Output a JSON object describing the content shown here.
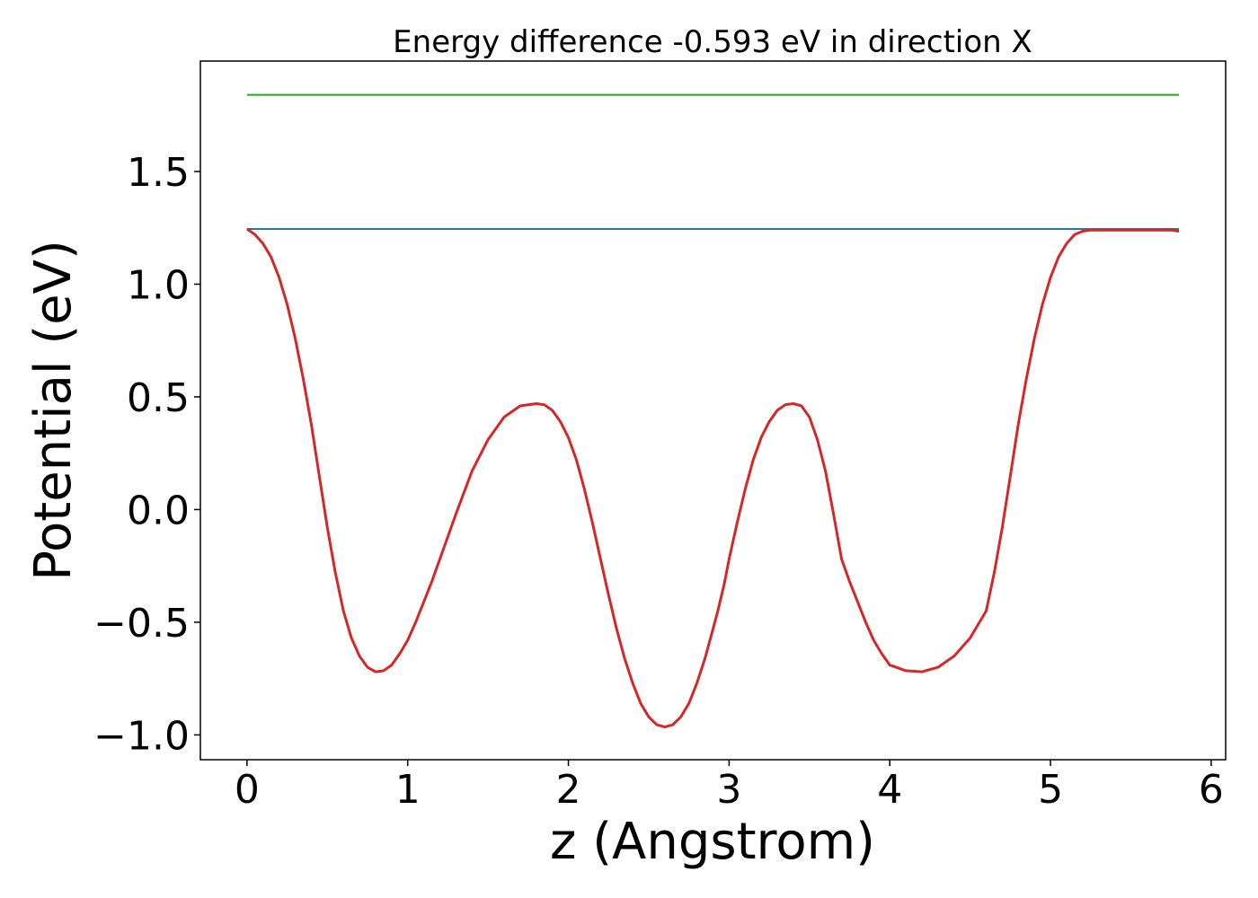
{
  "chart_data": {
    "type": "line",
    "title": "Energy difference -0.593 eV in direction X",
    "xlabel": "z (Angstrom)",
    "ylabel": "Potential (eV)",
    "xlim": [
      -0.29,
      6.09
    ],
    "ylim": [
      -1.11,
      1.99
    ],
    "xticks": [
      0,
      1,
      2,
      3,
      4,
      5,
      6
    ],
    "xtick_labels": [
      "0",
      "1",
      "2",
      "3",
      "4",
      "5",
      "6"
    ],
    "yticks": [
      -1.0,
      -0.5,
      0.0,
      0.5,
      1.0,
      1.5
    ],
    "ytick_labels": [
      "−1.0",
      "−0.5",
      "0.0",
      "0.5",
      "1.0",
      "1.5"
    ],
    "grid": false,
    "series": [
      {
        "color": "#2ca02c",
        "x": [
          0,
          5.8
        ],
        "y": [
          1.84,
          1.84
        ]
      },
      {
        "color": "#1f77b4",
        "x": [
          0,
          5.8
        ],
        "y": [
          1.245,
          1.245
        ]
      },
      {
        "color": "#d62728",
        "x": [
          0,
          0.05,
          0.1,
          0.15,
          0.2,
          0.25,
          0.3,
          0.35,
          0.4,
          0.45,
          0.5,
          0.55,
          0.6,
          0.65,
          0.7,
          0.75,
          0.8,
          0.85,
          0.9,
          0.95,
          1.0,
          1.05,
          1.1,
          1.15,
          1.2,
          1.3,
          1.4,
          1.5,
          1.6,
          1.7,
          1.8,
          1.85,
          1.9,
          1.95,
          2.0,
          2.05,
          2.1,
          2.15,
          2.2,
          2.25,
          2.3,
          2.35,
          2.4,
          2.45,
          2.5,
          2.55,
          2.6,
          2.65,
          2.7,
          2.75,
          2.8,
          2.85,
          2.9,
          2.93,
          2.97,
          3.0,
          3.05,
          3.1,
          3.15,
          3.2,
          3.25,
          3.3,
          3.35,
          3.4,
          3.45,
          3.5,
          3.55,
          3.6,
          3.65,
          3.7,
          3.75,
          3.8,
          3.85,
          3.9,
          3.95,
          4.0,
          4.1,
          4.2,
          4.3,
          4.4,
          4.5,
          4.6,
          4.65,
          4.7,
          4.75,
          4.8,
          4.85,
          4.9,
          4.95,
          5.0,
          5.05,
          5.1,
          5.15,
          5.2,
          5.25,
          5.3,
          5.35,
          5.4,
          5.45,
          5.5,
          5.55,
          5.6,
          5.65,
          5.7,
          5.75,
          5.8
        ],
        "y": [
          1.245,
          1.22,
          1.18,
          1.12,
          1.03,
          0.91,
          0.76,
          0.58,
          0.38,
          0.15,
          -0.08,
          -0.28,
          -0.45,
          -0.57,
          -0.65,
          -0.7,
          -0.72,
          -0.715,
          -0.69,
          -0.64,
          -0.58,
          -0.5,
          -0.41,
          -0.32,
          -0.22,
          -0.02,
          0.17,
          0.31,
          0.41,
          0.46,
          0.47,
          0.465,
          0.44,
          0.39,
          0.32,
          0.22,
          0.09,
          -0.06,
          -0.22,
          -0.38,
          -0.53,
          -0.66,
          -0.77,
          -0.86,
          -0.92,
          -0.955,
          -0.965,
          -0.955,
          -0.92,
          -0.86,
          -0.77,
          -0.66,
          -0.53,
          -0.45,
          -0.33,
          -0.22,
          -0.06,
          0.09,
          0.22,
          0.32,
          0.39,
          0.44,
          0.465,
          0.47,
          0.46,
          0.41,
          0.31,
          0.17,
          -0.02,
          -0.22,
          -0.32,
          -0.41,
          -0.5,
          -0.58,
          -0.64,
          -0.69,
          -0.715,
          -0.72,
          -0.7,
          -0.65,
          -0.57,
          -0.45,
          -0.28,
          -0.08,
          0.15,
          0.38,
          0.58,
          0.76,
          0.91,
          1.03,
          1.12,
          1.18,
          1.22,
          1.235,
          1.24,
          1.24,
          1.24,
          1.24,
          1.24,
          1.24,
          1.24,
          1.24,
          1.24,
          1.24,
          1.24,
          1.235
        ]
      }
    ]
  }
}
